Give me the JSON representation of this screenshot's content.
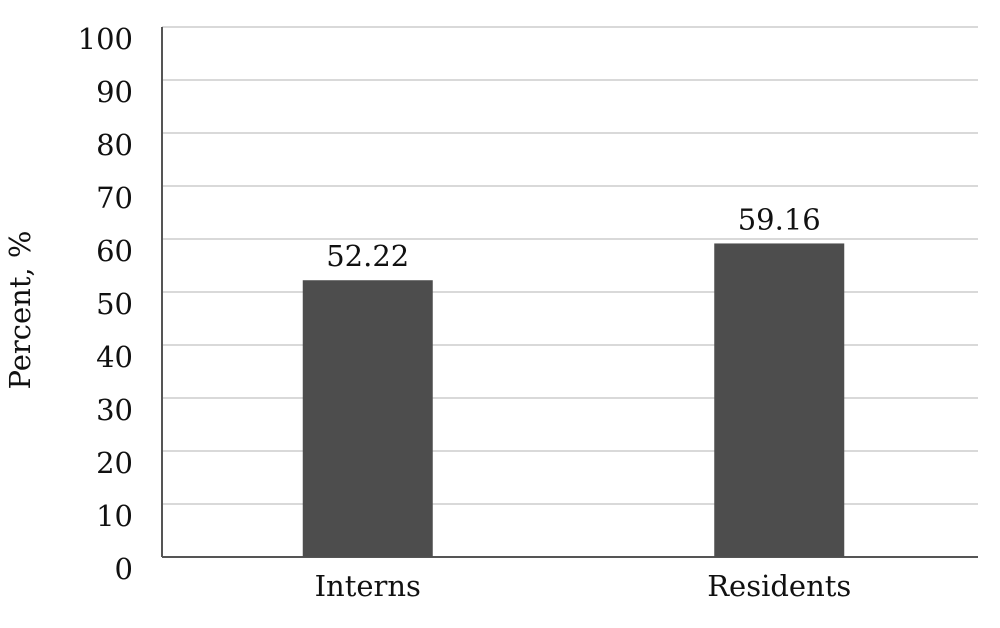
{
  "chart_data": {
    "type": "bar",
    "y_label": "Percent, %",
    "categories": [
      "Interns",
      "Residents"
    ],
    "values": [
      52.22,
      59.16
    ],
    "color": "#4d4d4d",
    "ylim": [
      0,
      100
    ],
    "yticks": [
      0,
      10,
      20,
      30,
      40,
      50,
      60,
      70,
      80,
      90,
      100
    ],
    "grid": true
  }
}
